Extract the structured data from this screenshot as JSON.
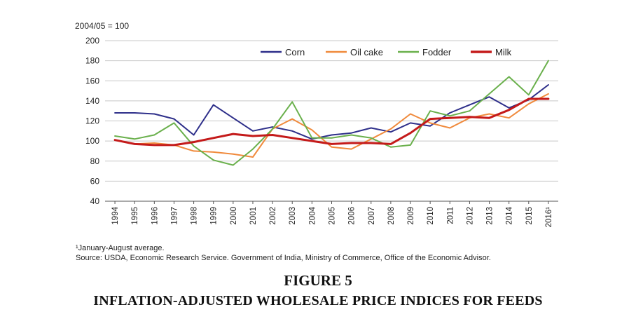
{
  "chart_data": {
    "type": "line",
    "ylabel": "2004/05 = 100",
    "ylim": [
      40,
      200
    ],
    "yticks": [
      40,
      60,
      80,
      100,
      120,
      140,
      160,
      180,
      200
    ],
    "grid": true,
    "legend_position": "top-right",
    "categories": [
      "1994",
      "1995",
      "1996",
      "1997",
      "1998",
      "1999",
      "2000",
      "2001",
      "2002",
      "2003",
      "2004",
      "2005",
      "2006",
      "2007",
      "2008",
      "2009",
      "2010",
      "2011",
      "2012",
      "2013",
      "2014",
      "2015",
      "2016"
    ],
    "tick_labels": [
      "1994",
      "1995",
      "1996",
      "1997",
      "1998",
      "1999",
      "2000",
      "2001",
      "2002",
      "2003",
      "2004",
      "2005",
      "2006",
      "2007",
      "2008",
      "2009",
      "2010",
      "2011",
      "2012",
      "2013",
      "2014",
      "2015",
      "2016¹"
    ],
    "series": [
      {
        "name": "Corn",
        "color": "#2e2f8a",
        "width": 2,
        "values": [
          128,
          128,
          127,
          122,
          106,
          136,
          123,
          110,
          114,
          110,
          102,
          106,
          108,
          113,
          109,
          118,
          115,
          128,
          136,
          144,
          133,
          141,
          156
        ]
      },
      {
        "name": "Oil cake",
        "color": "#f08a3c",
        "width": 2,
        "values": [
          101,
          97,
          98,
          96,
          90,
          89,
          87,
          84,
          112,
          122,
          111,
          94,
          92,
          102,
          112,
          127,
          118,
          113,
          123,
          127,
          123,
          137,
          147
        ]
      },
      {
        "name": "Fodder",
        "color": "#6ab04c",
        "width": 2,
        "values": [
          105,
          102,
          106,
          118,
          95,
          81,
          76,
          92,
          112,
          139,
          103,
          103,
          106,
          103,
          94,
          96,
          130,
          125,
          130,
          147,
          164,
          146,
          180
        ]
      },
      {
        "name": "Milk",
        "color": "#c41a1a",
        "width": 3,
        "values": [
          101,
          97,
          96,
          96,
          99,
          103,
          107,
          105,
          106,
          103,
          100,
          97,
          98,
          98,
          97,
          108,
          122,
          123,
          124,
          123,
          131,
          142,
          142
        ]
      }
    ]
  },
  "legend_labels": [
    "Corn",
    "Oil cake",
    "Fodder",
    "Milk"
  ],
  "footnote": "¹January-August average.",
  "source": "Source: USDA, Economic Research Service. Government of India, Ministry of Commerce, Office of the Economic Advisor.",
  "figure_label": "FIGURE 5",
  "figure_title": "INFLATION-ADJUSTED WHOLESALE PRICE INDICES FOR FEEDS"
}
